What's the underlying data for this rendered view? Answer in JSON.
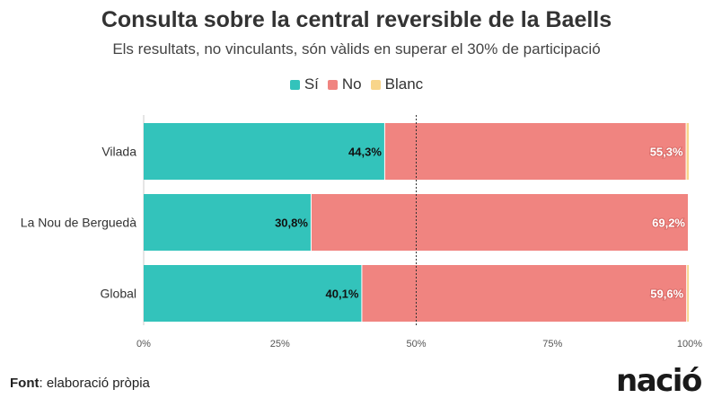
{
  "chart_data": {
    "type": "bar",
    "orientation": "horizontal",
    "stacked": true,
    "title": "Consulta sobre la central reversible de la Baells",
    "subtitle": "Els resultats, no vinculants, són vàlids en superar el 30% de participació",
    "categories": [
      "Vilada",
      "La Nou de Berguedà",
      "Global"
    ],
    "series": [
      {
        "name": "Sí",
        "color": "#33c3bb",
        "values": [
          44.3,
          30.8,
          40.1
        ],
        "labels": [
          "44,3%",
          "30,8%",
          "40,1%"
        ]
      },
      {
        "name": "No",
        "color": "#f08480",
        "values": [
          55.3,
          69.2,
          59.6
        ],
        "labels": [
          "55,3%",
          "69,2%",
          "59,6%"
        ]
      },
      {
        "name": "Blanc",
        "color": "#f8d58a",
        "values": [
          0.4,
          0.0,
          0.3
        ],
        "labels": [
          "",
          "",
          ""
        ]
      }
    ],
    "xlim": [
      0,
      100
    ],
    "xticks": [
      0,
      25,
      50,
      75,
      100
    ],
    "xtick_labels": [
      "0%",
      "25%",
      "50%",
      "75%",
      "100%"
    ],
    "reference_line": 50,
    "legend_position": "top-center",
    "grid": false
  },
  "footer": {
    "source_label": "Font",
    "source_text": ": elaboració pròpia"
  },
  "brand": {
    "logo_text": "nació"
  }
}
